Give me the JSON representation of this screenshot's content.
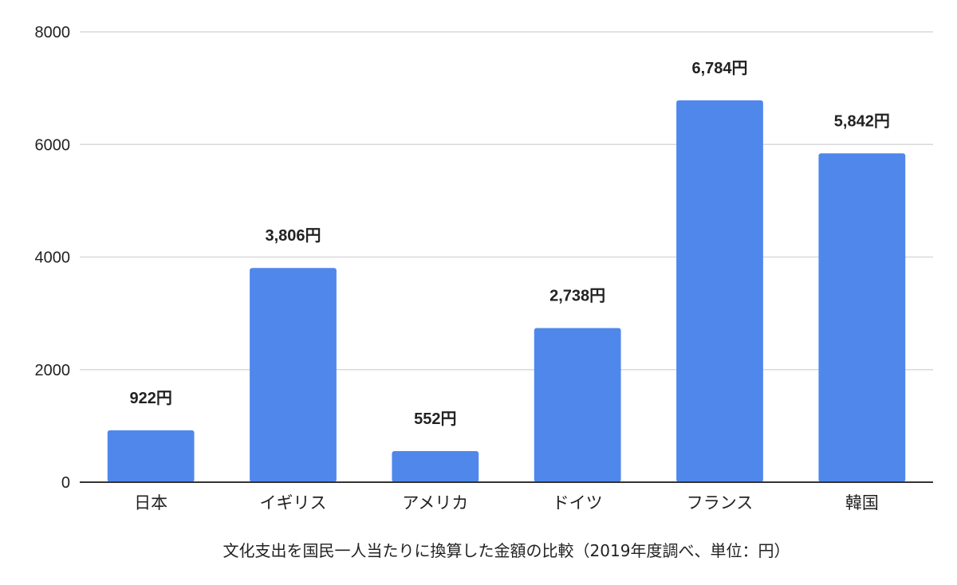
{
  "chart_data": {
    "type": "bar",
    "categories": [
      "日本",
      "イギリス",
      "アメリカ",
      "ドイツ",
      "フランス",
      "韓国"
    ],
    "series": [
      {
        "values": [
          922,
          3806,
          552,
          2738,
          6784,
          5842
        ],
        "data_labels": [
          "922円",
          "3,806円",
          "552円",
          "2,738円",
          "6,784円",
          "5,842円"
        ],
        "color": "#5087ea"
      }
    ],
    "title": "",
    "xlabel": "文化支出を国民一人当たりに換算した金額の比較（2019年度調べ、単位：円）",
    "ylabel": "",
    "ylim": [
      0,
      8000
    ],
    "yticks": [
      0,
      2000,
      4000,
      6000,
      8000
    ],
    "ytick_labels": [
      "0",
      "2000",
      "4000",
      "6000",
      "8000"
    ],
    "grid": true,
    "grid_color": "#d9d9d9",
    "axis_color": "#333333",
    "legend": "none"
  }
}
